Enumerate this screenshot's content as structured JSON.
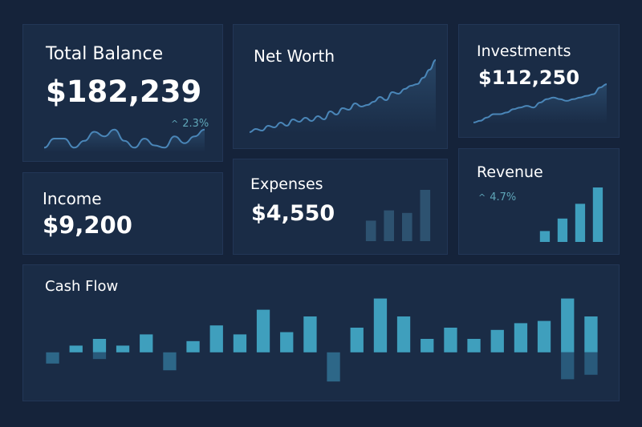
{
  "colors": {
    "background": "#15233a",
    "card": "#1a2c46",
    "accent": "#3f9fbd",
    "accent_line": "#4a86b8",
    "accent_dark": "#2d6788"
  },
  "cards": {
    "total_balance": {
      "title": "Total Balance",
      "value": "$182,239",
      "trend": "2.3%",
      "trend_icon": "chevron-up-icon"
    },
    "net_worth": {
      "title": "Net Worth"
    },
    "investments": {
      "title": "Investments",
      "value": "$112,250"
    },
    "income": {
      "title": "Income",
      "value": "$9,200"
    },
    "expenses": {
      "title": "Expenses",
      "value": "$4,550"
    },
    "revenue": {
      "title": "Revenue",
      "trend": "4.7%",
      "trend_icon": "chevron-up-icon"
    },
    "cash_flow": {
      "title": "Cash Flow"
    }
  },
  "chart_data": [
    {
      "type": "line",
      "name": "total_balance_sparkline",
      "x": [
        0,
        1,
        2,
        3,
        4,
        5,
        6,
        7,
        8,
        9,
        10,
        11,
        12,
        13,
        14,
        15,
        16
      ],
      "values": [
        2,
        6,
        6,
        2,
        5,
        9,
        7,
        10,
        5,
        2,
        6,
        3,
        2,
        7,
        4,
        7,
        10
      ],
      "ylim": [
        0,
        12
      ]
    },
    {
      "type": "line",
      "name": "net_worth_trend",
      "x": [
        0,
        1,
        2,
        3,
        4,
        5,
        6,
        7,
        8,
        9,
        10,
        11,
        12,
        13,
        14,
        15,
        16,
        17,
        18,
        19,
        20,
        21,
        22,
        23,
        24,
        25,
        26,
        27,
        28,
        29,
        30
      ],
      "values": [
        2,
        6,
        4,
        10,
        8,
        14,
        10,
        18,
        15,
        20,
        16,
        22,
        18,
        28,
        24,
        32,
        30,
        38,
        34,
        36,
        40,
        46,
        42,
        52,
        50,
        56,
        60,
        62,
        70,
        80,
        92
      ],
      "ylim": [
        0,
        100
      ]
    },
    {
      "type": "line",
      "name": "investments_trend",
      "x": [
        0,
        1,
        2,
        3,
        4,
        5,
        6,
        7,
        8,
        9,
        10,
        11,
        12,
        13,
        14,
        15,
        16,
        17,
        18,
        19,
        20
      ],
      "values": [
        2,
        4,
        8,
        12,
        12,
        14,
        18,
        20,
        22,
        20,
        26,
        30,
        32,
        30,
        28,
        30,
        32,
        34,
        36,
        44,
        48
      ],
      "ylim": [
        0,
        50
      ]
    },
    {
      "type": "bar",
      "name": "expenses_bars",
      "values": [
        40,
        60,
        55,
        100
      ],
      "ylim": [
        0,
        100
      ]
    },
    {
      "type": "bar",
      "name": "revenue_bars",
      "values": [
        20,
        43,
        70,
        100
      ],
      "ylim": [
        0,
        100
      ]
    },
    {
      "type": "bar",
      "name": "cash_flow",
      "values": [
        -5,
        3,
        6,
        3,
        8,
        -8,
        5,
        12,
        8,
        19,
        9,
        16,
        -13,
        11,
        24,
        16,
        6,
        11,
        6,
        10,
        13,
        14,
        24,
        16
      ],
      "secondary": [
        0,
        0,
        -3,
        0,
        0,
        0,
        0,
        0,
        0,
        0,
        0,
        0,
        0,
        0,
        0,
        0,
        0,
        0,
        0,
        0,
        0,
        0,
        -12,
        -10
      ],
      "ylim": [
        -14,
        26
      ]
    }
  ]
}
